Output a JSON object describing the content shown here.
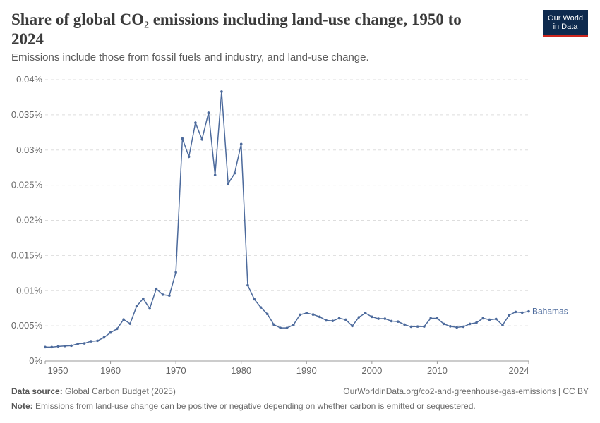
{
  "header": {
    "title": "Share of global CO₂ emissions including land-use change, 1950 to 2024",
    "subtitle": "Emissions include those from fossil fuels and industry, and land-use change.",
    "logo": "Our World in Data"
  },
  "footer": {
    "source_label": "Data source:",
    "source": "Global Carbon Budget (2025)",
    "url": "OurWorldinData.org/co2-and-greenhouse-gas-emissions | CC BY",
    "note_label": "Note:",
    "note": "Emissions from land-use change can be positive or negative depending on whether carbon is emitted or sequestered."
  },
  "chart_data": {
    "type": "line",
    "title": "Share of global CO₂ emissions including land-use change, 1950 to 2024",
    "xlim": [
      1950,
      2024
    ],
    "ylim": [
      0,
      0.04
    ],
    "y_unit": "%",
    "y_ticks": [
      0,
      0.005,
      0.01,
      0.015,
      0.02,
      0.025,
      0.03,
      0.035,
      0.04
    ],
    "y_tick_labels": [
      "0%",
      "0.005%",
      "0.01%",
      "0.015%",
      "0.02%",
      "0.025%",
      "0.03%",
      "0.035%",
      "0.04%"
    ],
    "x_ticks": [
      1950,
      1960,
      1970,
      1980,
      1990,
      2000,
      2010,
      2024
    ],
    "x_tick_labels": [
      "1950",
      "1960",
      "1970",
      "1980",
      "1990",
      "2000",
      "2010",
      "2024"
    ],
    "grid": "horizontal dashed",
    "line_color": "#4c6a9c",
    "series": [
      {
        "name": "Bahamas",
        "start_year": 1950,
        "values": [
          0.00197,
          0.00197,
          0.00207,
          0.00213,
          0.00217,
          0.00244,
          0.0025,
          0.0028,
          0.00287,
          0.00334,
          0.00404,
          0.00457,
          0.0059,
          0.0053,
          0.0078,
          0.00886,
          0.00745,
          0.01026,
          0.00943,
          0.0093,
          0.0126,
          0.03163,
          0.02905,
          0.03387,
          0.0315,
          0.0353,
          0.02644,
          0.0383,
          0.0252,
          0.0267,
          0.03085,
          0.01077,
          0.00879,
          0.00762,
          0.00668,
          0.00517,
          0.0047,
          0.0047,
          0.00513,
          0.00658,
          0.00681,
          0.00661,
          0.00628,
          0.00577,
          0.0057,
          0.00607,
          0.00587,
          0.00497,
          0.00621,
          0.00681,
          0.00628,
          0.00601,
          0.00601,
          0.00567,
          0.0056,
          0.00517,
          0.00487,
          0.0049,
          0.0049,
          0.00607,
          0.00607,
          0.00527,
          0.00493,
          0.00477,
          0.00487,
          0.00527,
          0.00544,
          0.00607,
          0.00587,
          0.00597,
          0.0051,
          0.00651,
          0.00698,
          0.00688,
          0.00705
        ]
      }
    ]
  }
}
